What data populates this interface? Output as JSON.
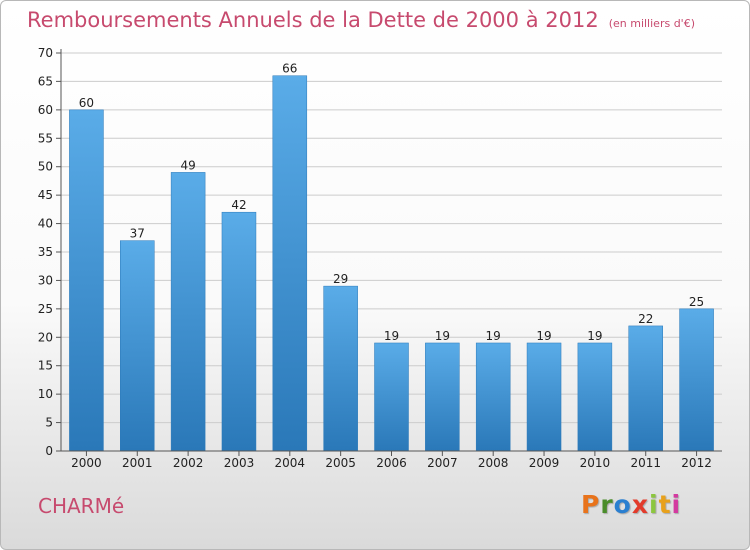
{
  "header": {
    "title": "Remboursements Annuels de la Dette de 2000 à 2012",
    "unit": "(en milliers d'€)"
  },
  "footer": {
    "commune": "CHARMé",
    "logo_letters": [
      "P",
      "r",
      "o",
      "x",
      "i",
      "t",
      "i"
    ],
    "logo_colors": [
      "#e8731b",
      "#4a8c2a",
      "#2a7fd0",
      "#e23a2a",
      "#8cc63f",
      "#e8a11b",
      "#d33aa0"
    ]
  },
  "chart_data": {
    "type": "bar",
    "categories": [
      "2000",
      "2001",
      "2002",
      "2003",
      "2004",
      "2005",
      "2006",
      "2007",
      "2008",
      "2009",
      "2010",
      "2011",
      "2012"
    ],
    "values": [
      60,
      37,
      49,
      42,
      66,
      29,
      19,
      19,
      19,
      19,
      19,
      22,
      25
    ],
    "data_labels": [
      "60",
      "37",
      "49",
      "42",
      "66",
      "29",
      "19",
      "19",
      "19",
      "19",
      "19",
      "22",
      "25"
    ],
    "yticks": [
      "0",
      "5",
      "10",
      "15",
      "20",
      "25",
      "30",
      "35",
      "40",
      "45",
      "50",
      "55",
      "60",
      "65",
      "70"
    ],
    "ylim": [
      0,
      70
    ],
    "grid": true,
    "bar_color_top": "#5aace8",
    "bar_color_bottom": "#2a78b8",
    "grid_color": "#cccccc"
  }
}
